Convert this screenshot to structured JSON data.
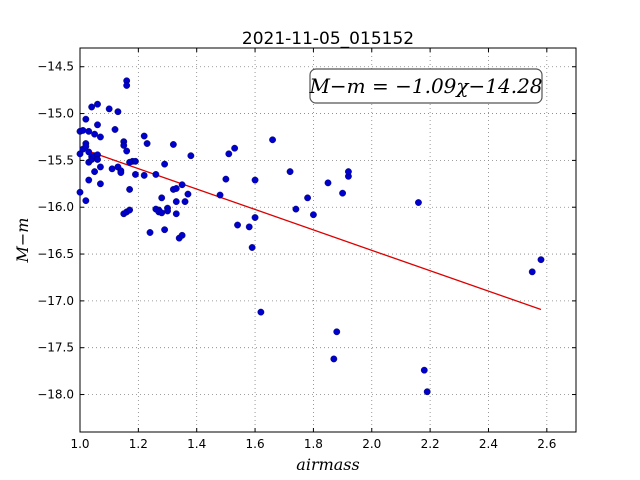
{
  "chart_data": {
    "type": "scatter",
    "title": "2021-11-05_015152",
    "xlabel": "airmass",
    "ylabel": "M−m",
    "xlim": [
      1.0,
      2.7
    ],
    "ylim": [
      -18.4,
      -14.3
    ],
    "y_inverted": true,
    "grid": true,
    "x_ticks": [
      1.0,
      1.2,
      1.4,
      1.6,
      1.8,
      2.0,
      2.2,
      2.4,
      2.6
    ],
    "x_tick_labels": [
      "1.0",
      "1.2",
      "1.4",
      "1.6",
      "1.8",
      "2.0",
      "2.2",
      "2.4",
      "2.6"
    ],
    "y_ticks": [
      -14.5,
      -15.0,
      -15.5,
      -16.0,
      -16.5,
      -17.0,
      -17.5,
      -18.0
    ],
    "y_tick_labels": [
      "−14.5",
      "−15.0",
      "−15.5",
      "−16.0",
      "−16.5",
      "−17.0",
      "−17.5",
      "−18.0"
    ],
    "annotation": "M−m = −1.09χ−14.28",
    "colors": {
      "points": "#0000cc",
      "fit_line": "#dd0000",
      "grid": "#808080"
    },
    "fit_line": {
      "slope": -1.09,
      "intercept": -14.28,
      "x_range": [
        1.02,
        2.58
      ]
    },
    "points": [
      [
        1.0,
        -15.43
      ],
      [
        1.0,
        -15.84
      ],
      [
        1.0,
        -15.19
      ],
      [
        1.01,
        -15.38
      ],
      [
        1.01,
        -15.18
      ],
      [
        1.02,
        -15.06
      ],
      [
        1.02,
        -15.93
      ],
      [
        1.02,
        -15.32
      ],
      [
        1.02,
        -15.35
      ],
      [
        1.03,
        -15.41
      ],
      [
        1.03,
        -15.52
      ],
      [
        1.03,
        -15.71
      ],
      [
        1.03,
        -15.19
      ],
      [
        1.04,
        -15.46
      ],
      [
        1.04,
        -15.49
      ],
      [
        1.04,
        -14.93
      ],
      [
        1.05,
        -15.22
      ],
      [
        1.05,
        -15.62
      ],
      [
        1.05,
        -15.45
      ],
      [
        1.06,
        -14.9
      ],
      [
        1.06,
        -15.12
      ],
      [
        1.06,
        -15.44
      ],
      [
        1.06,
        -15.49
      ],
      [
        1.07,
        -15.25
      ],
      [
        1.07,
        -15.75
      ],
      [
        1.07,
        -15.57
      ],
      [
        1.1,
        -14.95
      ],
      [
        1.11,
        -15.59
      ],
      [
        1.12,
        -15.17
      ],
      [
        1.13,
        -14.98
      ],
      [
        1.13,
        -15.57
      ],
      [
        1.14,
        -15.61
      ],
      [
        1.14,
        -15.63
      ],
      [
        1.15,
        -15.3
      ],
      [
        1.15,
        -15.34
      ],
      [
        1.15,
        -16.07
      ],
      [
        1.16,
        -14.65
      ],
      [
        1.16,
        -14.7
      ],
      [
        1.16,
        -15.4
      ],
      [
        1.16,
        -16.05
      ],
      [
        1.17,
        -15.52
      ],
      [
        1.17,
        -15.81
      ],
      [
        1.17,
        -16.03
      ],
      [
        1.18,
        -15.51
      ],
      [
        1.19,
        -15.51
      ],
      [
        1.19,
        -15.65
      ],
      [
        1.22,
        -15.24
      ],
      [
        1.22,
        -15.66
      ],
      [
        1.23,
        -15.32
      ],
      [
        1.24,
        -16.27
      ],
      [
        1.26,
        -15.65
      ],
      [
        1.26,
        -16.02
      ],
      [
        1.27,
        -16.03
      ],
      [
        1.27,
        -16.05
      ],
      [
        1.28,
        -15.9
      ],
      [
        1.28,
        -16.06
      ],
      [
        1.29,
        -15.54
      ],
      [
        1.29,
        -16.24
      ],
      [
        1.3,
        -16.01
      ],
      [
        1.3,
        -16.04
      ],
      [
        1.32,
        -15.33
      ],
      [
        1.32,
        -15.81
      ],
      [
        1.33,
        -15.8
      ],
      [
        1.33,
        -15.94
      ],
      [
        1.33,
        -16.07
      ],
      [
        1.34,
        -16.33
      ],
      [
        1.35,
        -16.3
      ],
      [
        1.35,
        -15.76
      ],
      [
        1.36,
        -15.94
      ],
      [
        1.37,
        -15.86
      ],
      [
        1.38,
        -15.45
      ],
      [
        1.48,
        -15.87
      ],
      [
        1.5,
        -15.7
      ],
      [
        1.51,
        -15.43
      ],
      [
        1.53,
        -15.37
      ],
      [
        1.54,
        -16.19
      ],
      [
        1.58,
        -16.21
      ],
      [
        1.59,
        -16.43
      ],
      [
        1.6,
        -15.71
      ],
      [
        1.6,
        -16.11
      ],
      [
        1.62,
        -17.12
      ],
      [
        1.66,
        -15.28
      ],
      [
        1.72,
        -15.62
      ],
      [
        1.74,
        -16.02
      ],
      [
        1.78,
        -15.9
      ],
      [
        1.8,
        -16.08
      ],
      [
        1.85,
        -15.74
      ],
      [
        1.87,
        -17.62
      ],
      [
        1.88,
        -17.33
      ],
      [
        1.9,
        -15.85
      ],
      [
        1.92,
        -15.67
      ],
      [
        1.92,
        -15.62
      ],
      [
        2.16,
        -15.95
      ],
      [
        2.18,
        -17.74
      ],
      [
        2.19,
        -17.97
      ],
      [
        2.55,
        -16.69
      ],
      [
        2.58,
        -16.56
      ]
    ]
  }
}
